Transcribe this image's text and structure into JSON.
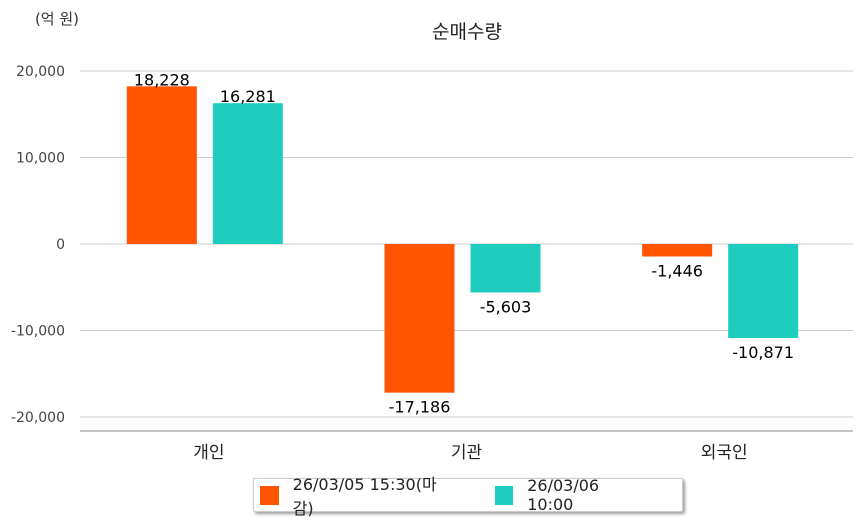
{
  "chart_data": {
    "type": "bar",
    "title": "순매수량",
    "unit_label": "(억 원)",
    "categories": [
      "개인",
      "기관",
      "외국인"
    ],
    "series": [
      {
        "name": "26/03/05 15:30(마감)",
        "color": "#ff5500",
        "values": [
          18228,
          -17186,
          -1446
        ],
        "labels": [
          "18,228",
          "-17,186",
          "-1,446"
        ]
      },
      {
        "name": "26/03/06 10:00",
        "color": "#1ecdbd",
        "values": [
          16281,
          -5603,
          -10871
        ],
        "labels": [
          "16,281",
          "-5,603",
          "-10,871"
        ]
      }
    ],
    "yticks": [
      20000,
      10000,
      0,
      -10000,
      -20000
    ],
    "ytick_labels": [
      "20,000",
      "10,000",
      "0",
      "-10,000",
      "-20,000"
    ],
    "ylim": [
      -21500,
      20000
    ],
    "grid": true,
    "legend_position": "bottom"
  }
}
